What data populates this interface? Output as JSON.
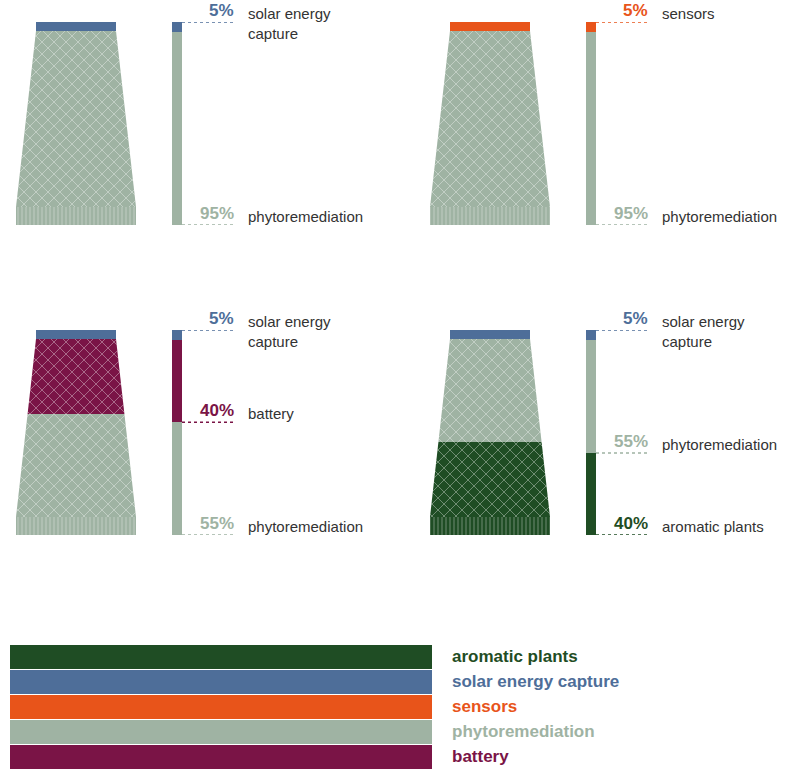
{
  "chart_data": [
    {
      "type": "bar",
      "stacked": true,
      "categories": [
        null
      ],
      "ylim": [
        0,
        100
      ],
      "tick_labels": false,
      "data_labels": true,
      "series": [
        {
          "name": "phytoremediation",
          "color": "#9fb3a3",
          "values": [
            95
          ],
          "value_labels": [
            "95%"
          ]
        },
        {
          "name": "solar energy capture",
          "color": "#4e6e99",
          "values": [
            5
          ],
          "value_labels": [
            "5%"
          ]
        }
      ]
    },
    {
      "type": "bar",
      "stacked": true,
      "categories": [
        null
      ],
      "ylim": [
        0,
        100
      ],
      "tick_labels": false,
      "data_labels": true,
      "series": [
        {
          "name": "phytoremediation",
          "color": "#9fb3a3",
          "values": [
            95
          ],
          "value_labels": [
            "95%"
          ]
        },
        {
          "name": "sensors",
          "color": "#e8541a",
          "values": [
            5
          ],
          "value_labels": [
            "5%"
          ]
        }
      ]
    },
    {
      "type": "bar",
      "stacked": true,
      "categories": [
        null
      ],
      "ylim": [
        0,
        100
      ],
      "tick_labels": false,
      "data_labels": true,
      "series": [
        {
          "name": "phytoremediation",
          "color": "#9fb3a3",
          "values": [
            55
          ],
          "value_labels": [
            "55%"
          ]
        },
        {
          "name": "battery",
          "color": "#7a1446",
          "values": [
            40
          ],
          "value_labels": [
            "40%"
          ]
        },
        {
          "name": "solar energy capture",
          "color": "#4e6e99",
          "values": [
            5
          ],
          "value_labels": [
            "5%"
          ]
        }
      ]
    },
    {
      "type": "bar",
      "stacked": true,
      "categories": [
        null
      ],
      "ylim": [
        0,
        100
      ],
      "tick_labels": false,
      "data_labels": true,
      "series": [
        {
          "name": "aromatic plants",
          "color": "#1f4d24",
          "values": [
            40
          ],
          "value_labels": [
            "40%"
          ]
        },
        {
          "name": "phytoremediation",
          "color": "#9fb3a3",
          "values": [
            55
          ],
          "value_labels": [
            "55%"
          ]
        },
        {
          "name": "solar energy capture",
          "color": "#4e6e99",
          "values": [
            5
          ],
          "value_labels": [
            "5%"
          ]
        }
      ]
    }
  ],
  "legend_items": [
    {
      "name": "aromatic plants",
      "color": "#1f4d24"
    },
    {
      "name": "solar energy capture",
      "color": "#4e6e99"
    },
    {
      "name": "sensors",
      "color": "#e8541a"
    },
    {
      "name": "phytoremediation",
      "color": "#9fb3a3"
    },
    {
      "name": "battery",
      "color": "#7a1446"
    }
  ]
}
